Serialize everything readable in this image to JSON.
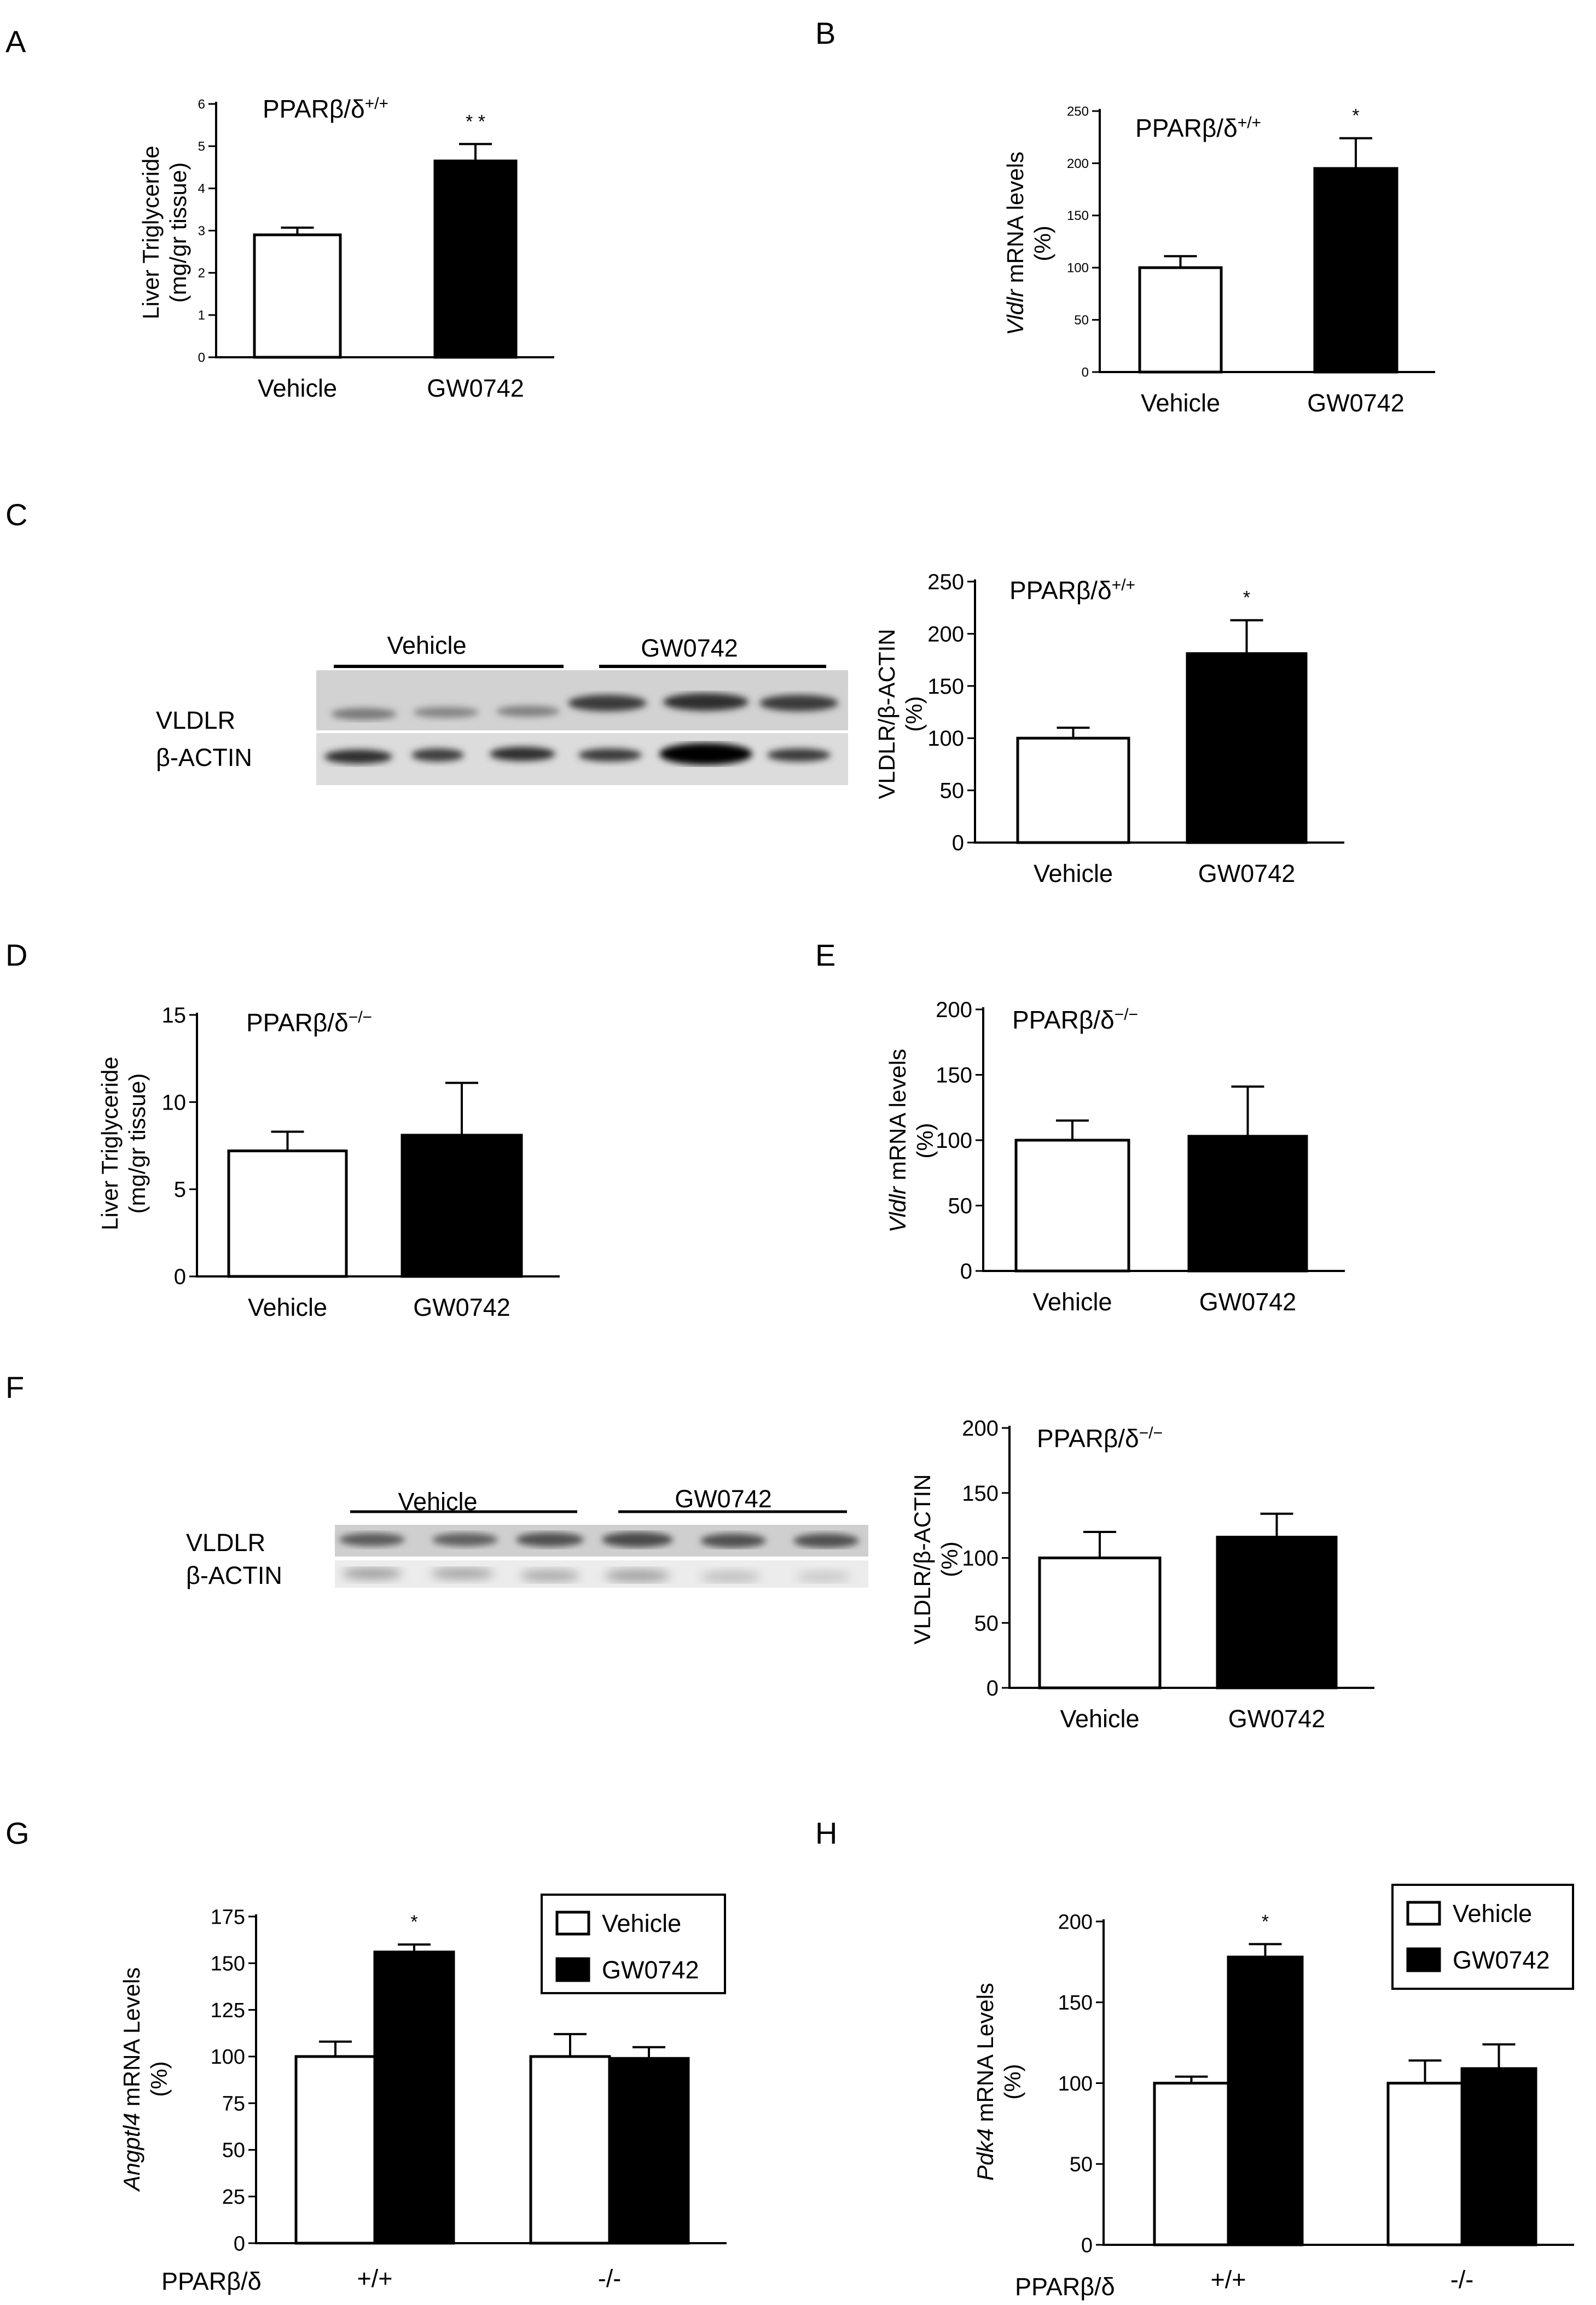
{
  "panels": [
    {
      "id": "A",
      "letter": "A",
      "title": "PPARβ/δ+/+",
      "title_base": "PPARβ/δ",
      "title_sup": "+/+",
      "ylabel": "Liver Triglyceride",
      "ylabel2": "(mg/gr tissue)",
      "ylabel_italic": "",
      "yticks": [
        "0",
        "1",
        "2",
        "3",
        "4",
        "5",
        "6"
      ]
    },
    {
      "id": "B",
      "letter": "B",
      "title": "PPARβ/δ+/+",
      "title_base": "PPARβ/δ",
      "title_sup": "+/+",
      "ylabel": " mRNA levels",
      "ylabel2": "(%)",
      "ylabel_italic": "Vldlr",
      "yticks": [
        "0",
        "50",
        "100",
        "150",
        "200",
        "250"
      ]
    },
    {
      "id": "C",
      "letter": "C",
      "title": "PPARβ/δ+/+",
      "title_base": "PPARβ/δ",
      "title_sup": "+/+",
      "ylabel": "VLDLR/β-ACTIN",
      "ylabel2": "(%)",
      "ylabel_italic": "",
      "yticks": [
        "0",
        "50",
        "100",
        "150",
        "200",
        "250"
      ]
    },
    {
      "id": "D",
      "letter": "D",
      "title": "PPARβ/δ−/−",
      "title_base": "PPARβ/δ",
      "title_sup": "−/−",
      "ylabel": "Liver Triglyceride",
      "ylabel2": "(mg/gr tissue)",
      "ylabel_italic": "",
      "yticks": [
        "0",
        "5",
        "10",
        "15"
      ]
    },
    {
      "id": "E",
      "letter": "E",
      "title": "PPARβ/δ−/−",
      "title_base": "PPARβ/δ",
      "title_sup": "−/−",
      "ylabel": " mRNA levels",
      "ylabel2": "(%)",
      "ylabel_italic": "Vldlr",
      "yticks": [
        "0",
        "50",
        "100",
        "150",
        "200"
      ]
    },
    {
      "id": "F",
      "letter": "F",
      "title": "PPARβ/δ−/−",
      "title_base": "PPARβ/δ",
      "title_sup": "−/−",
      "ylabel": "VLDLR/β-ACTIN",
      "ylabel2": "(%)",
      "ylabel_italic": "",
      "yticks": [
        "0",
        "50",
        "100",
        "150",
        "200"
      ]
    },
    {
      "id": "G",
      "letter": "G",
      "title": "",
      "title_base": "",
      "title_sup": "",
      "ylabel": " mRNA Levels",
      "ylabel2": "(%)",
      "ylabel_italic": "Angptl4",
      "yticks": [
        "0",
        "25",
        "50",
        "75",
        "100",
        "125",
        "150",
        "175"
      ],
      "group_prefix": "PPARβ/δ",
      "legend": [
        "Vehicle",
        "GW0742"
      ]
    },
    {
      "id": "H",
      "letter": "H",
      "title": "",
      "title_base": "",
      "title_sup": "",
      "ylabel": " mRNA Levels",
      "ylabel2": "(%)",
      "ylabel_italic": "Pdk4",
      "yticks": [
        "0",
        "50",
        "100",
        "150",
        "200"
      ],
      "group_prefix": "PPARβ/δ",
      "legend": [
        "Vehicle",
        "GW0742"
      ]
    }
  ],
  "blots": [
    {
      "panel": "C",
      "group1": "Vehicle",
      "group2": "GW0742",
      "row1": "VLDLR",
      "row2": "β-ACTIN"
    },
    {
      "panel": "F",
      "group1": "Vehicle",
      "group2": "GW0742",
      "row1": "VLDLR",
      "row2": "β-ACTIN"
    }
  ],
  "colors": {
    "vehicle": "#ffffff",
    "gw0742": "#000000",
    "axis": "#000000"
  },
  "chart_data": [
    {
      "panel": "A",
      "type": "bar",
      "categories": [
        "Vehicle",
        "GW0742"
      ],
      "values": [
        2.9,
        4.65
      ],
      "errors": [
        0.17,
        0.4
      ],
      "significance": [
        "",
        "* *"
      ],
      "ylim": [
        0,
        6
      ],
      "ylabel": "Liver Triglyceride (mg/gr tissue)",
      "title": "PPARβ/δ+/+"
    },
    {
      "panel": "B",
      "type": "bar",
      "categories": [
        "Vehicle",
        "GW0742"
      ],
      "values": [
        100,
        195
      ],
      "errors": [
        11,
        29
      ],
      "significance": [
        "",
        "*"
      ],
      "ylim": [
        0,
        250
      ],
      "ylabel": "Vldlr mRNA levels (%)",
      "title": "PPARβ/δ+/+"
    },
    {
      "panel": "C",
      "type": "bar",
      "categories": [
        "Vehicle",
        "GW0742"
      ],
      "values": [
        100,
        181
      ],
      "errors": [
        10,
        32
      ],
      "significance": [
        "",
        "*"
      ],
      "ylim": [
        0,
        250
      ],
      "ylabel": "VLDLR/β-ACTIN (%)",
      "title": "PPARβ/δ+/+"
    },
    {
      "panel": "D",
      "type": "bar",
      "categories": [
        "Vehicle",
        "GW0742"
      ],
      "values": [
        7.2,
        8.1
      ],
      "errors": [
        1.1,
        3.0
      ],
      "significance": [
        "",
        ""
      ],
      "ylim": [
        0,
        15
      ],
      "ylabel": "Liver Triglyceride (mg/gr tissue)",
      "title": "PPARβ/δ−/−"
    },
    {
      "panel": "E",
      "type": "bar",
      "categories": [
        "Vehicle",
        "GW0742"
      ],
      "values": [
        100,
        103
      ],
      "errors": [
        15,
        38
      ],
      "significance": [
        "",
        ""
      ],
      "ylim": [
        0,
        200
      ],
      "ylabel": "Vldlr mRNA levels (%)",
      "title": "PPARβ/δ−/−"
    },
    {
      "panel": "F",
      "type": "bar",
      "categories": [
        "Vehicle",
        "GW0742"
      ],
      "values": [
        100,
        116
      ],
      "errors": [
        20,
        18
      ],
      "significance": [
        "",
        ""
      ],
      "ylim": [
        0,
        200
      ],
      "ylabel": "VLDLR/β-ACTIN (%)",
      "title": "PPARβ/δ−/−"
    },
    {
      "panel": "G",
      "type": "bar",
      "categories": [
        "+/+",
        "-/-"
      ],
      "series": [
        {
          "name": "Vehicle",
          "values": [
            100,
            100
          ],
          "errors": [
            8,
            12
          ]
        },
        {
          "name": "GW0742",
          "values": [
            156,
            99
          ],
          "errors": [
            4,
            6
          ]
        }
      ],
      "significance": [
        "*",
        ""
      ],
      "ylim": [
        0,
        175
      ],
      "ylabel": "Angptl4 mRNA Levels (%)",
      "xlabel": "PPARβ/δ",
      "legend": "top-right"
    },
    {
      "panel": "H",
      "type": "bar",
      "categories": [
        "+/+",
        "-/-"
      ],
      "series": [
        {
          "name": "Vehicle",
          "values": [
            100,
            100
          ],
          "errors": [
            4,
            14
          ]
        },
        {
          "name": "GW0742",
          "values": [
            178,
            109
          ],
          "errors": [
            8,
            15
          ]
        }
      ],
      "significance": [
        "*",
        ""
      ],
      "ylim": [
        0,
        200
      ],
      "ylabel": "Pdk4 mRNA Levels (%)",
      "xlabel": "PPARβ/δ",
      "legend": "top-right"
    }
  ]
}
